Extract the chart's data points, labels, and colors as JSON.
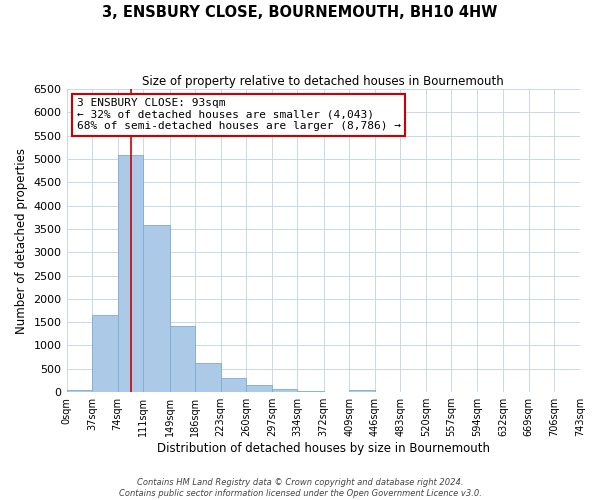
{
  "title": "3, ENSBURY CLOSE, BOURNEMOUTH, BH10 4HW",
  "subtitle": "Size of property relative to detached houses in Bournemouth",
  "xlabel": "Distribution of detached houses by size in Bournemouth",
  "ylabel": "Number of detached properties",
  "bar_color": "#adc9e8",
  "bar_edge_color": "#7aadd4",
  "bin_edges": [
    0,
    37,
    74,
    111,
    149,
    186,
    223,
    260,
    297,
    334,
    372,
    409,
    446,
    483,
    520,
    557,
    594,
    632,
    669,
    706,
    743
  ],
  "bin_labels": [
    "0sqm",
    "37sqm",
    "74sqm",
    "111sqm",
    "149sqm",
    "186sqm",
    "223sqm",
    "260sqm",
    "297sqm",
    "334sqm",
    "372sqm",
    "409sqm",
    "446sqm",
    "483sqm",
    "520sqm",
    "557sqm",
    "594sqm",
    "632sqm",
    "669sqm",
    "706sqm",
    "743sqm"
  ],
  "bar_heights": [
    50,
    1650,
    5080,
    3580,
    1420,
    620,
    310,
    150,
    70,
    20,
    5,
    50,
    0,
    0,
    0,
    0,
    0,
    0,
    0,
    0
  ],
  "ylim": [
    0,
    6500
  ],
  "yticks": [
    0,
    500,
    1000,
    1500,
    2000,
    2500,
    3000,
    3500,
    4000,
    4500,
    5000,
    5500,
    6000,
    6500
  ],
  "vline_x": 93,
  "vline_color": "#cc0000",
  "annotation_title": "3 ENSBURY CLOSE: 93sqm",
  "annotation_line1": "← 32% of detached houses are smaller (4,043)",
  "annotation_line2": "68% of semi-detached houses are larger (8,786) →",
  "annotation_box_color": "#cc0000",
  "footer_line1": "Contains HM Land Registry data © Crown copyright and database right 2024.",
  "footer_line2": "Contains public sector information licensed under the Open Government Licence v3.0.",
  "background_color": "#ffffff",
  "grid_color": "#c8d8e8"
}
